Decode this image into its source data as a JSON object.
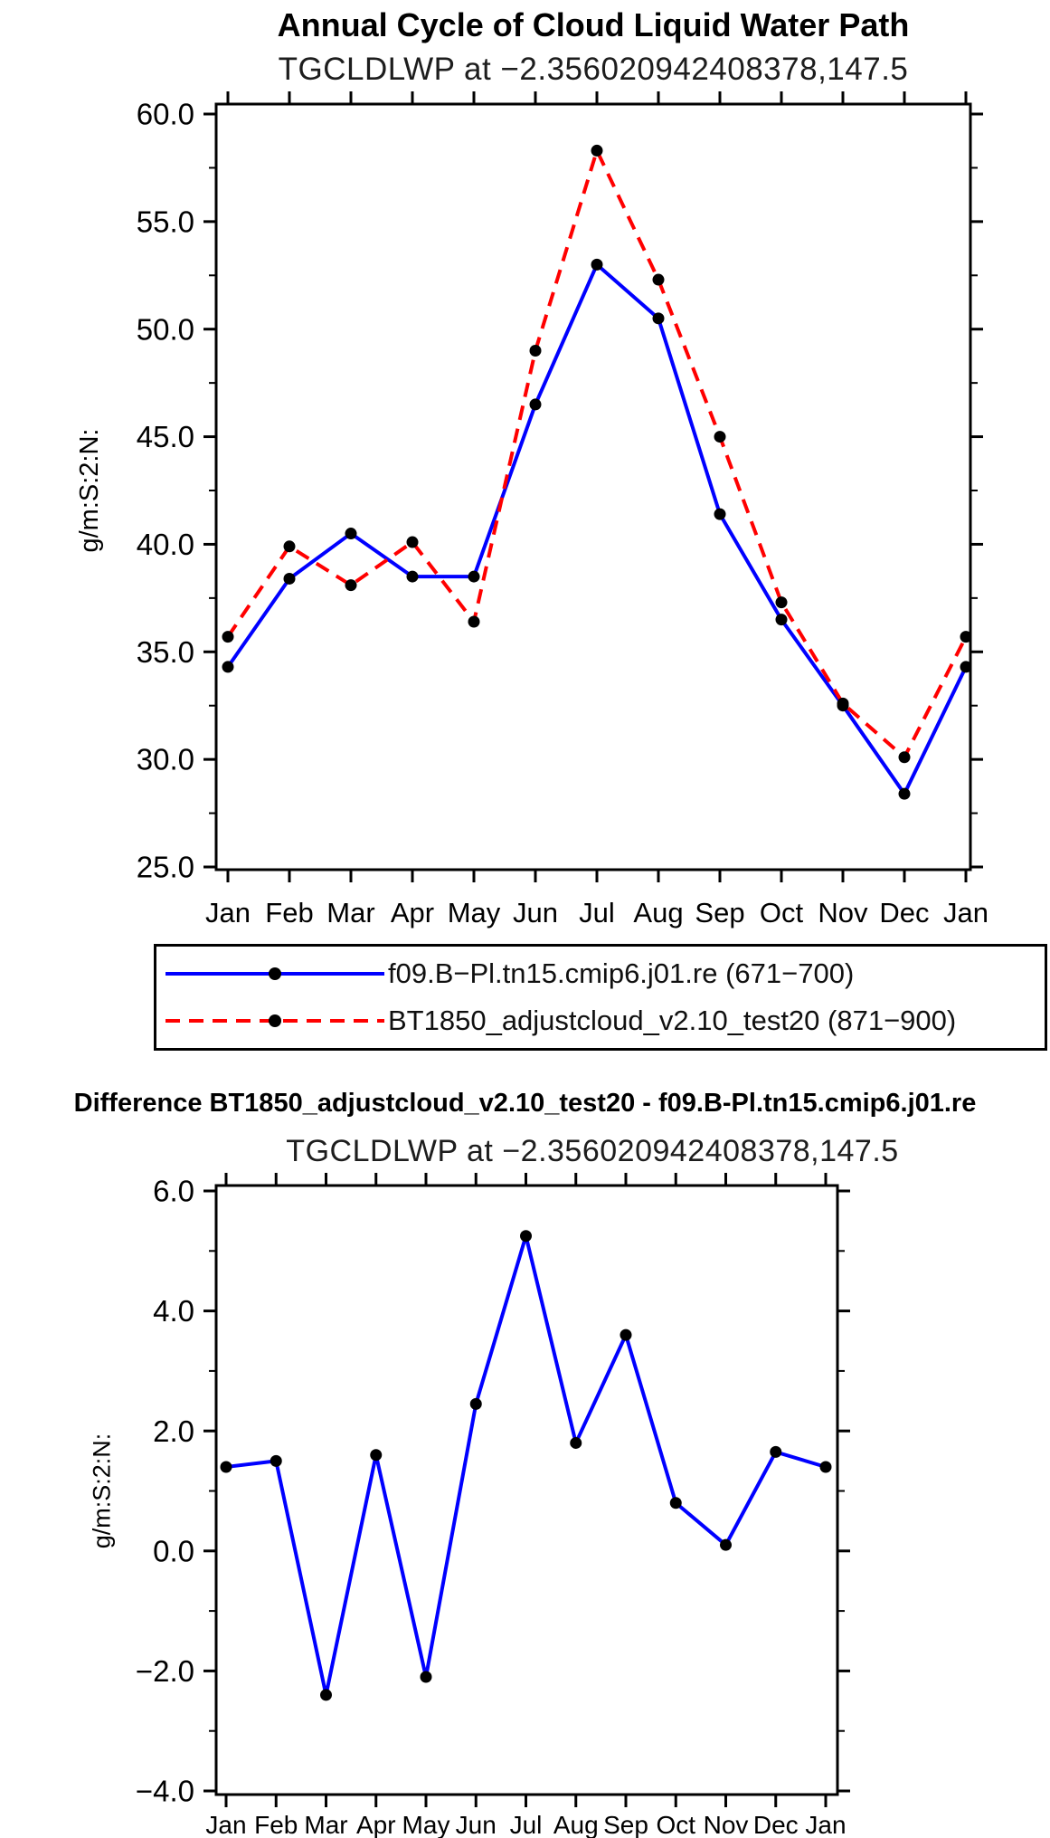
{
  "chart_data": [
    {
      "type": "line",
      "title": "Annual Cycle of Cloud Liquid Water Path",
      "subtitle": "TGCLDLWP at −2.356020942408378,147.5",
      "ylabel": "g/m:S:2:N:",
      "xlabel": "",
      "categories": [
        "Jan",
        "Feb",
        "Mar",
        "Apr",
        "May",
        "Jun",
        "Jul",
        "Aug",
        "Sep",
        "Oct",
        "Nov",
        "Dec",
        "Jan"
      ],
      "ylim": [
        25.0,
        60.0
      ],
      "ytick_values": [
        25,
        30,
        35,
        40,
        45,
        50,
        55,
        60
      ],
      "ytick_labels": [
        "25.0",
        "30.0",
        "35.0",
        "40.0",
        "45.0",
        "50.0",
        "55.0",
        "60.0"
      ],
      "yminor_step": 2.5,
      "grid": false,
      "legend_position": "below",
      "series": [
        {
          "name": "f09.B−Pl.tn15.cmip6.j01.re (671−700)",
          "color": "#0000ff",
          "line_style": "solid",
          "marker": "filled-circle",
          "marker_color": "#000000",
          "values": [
            34.3,
            38.4,
            40.5,
            38.5,
            38.5,
            46.5,
            53.0,
            50.5,
            41.4,
            36.5,
            32.5,
            28.4,
            34.3
          ]
        },
        {
          "name": "BT1850_adjustcloud_v2.10_test20 (871−900)",
          "color": "#ff0000",
          "line_style": "dashed",
          "marker": "filled-circle",
          "marker_color": "#000000",
          "values": [
            35.7,
            39.9,
            38.1,
            40.1,
            36.4,
            49.0,
            58.3,
            52.3,
            45.0,
            37.3,
            32.6,
            30.1,
            35.7
          ]
        }
      ]
    },
    {
      "type": "line",
      "title": "Difference BT1850_adjustcloud_v2.10_test20 - f09.B-Pl.tn15.cmip6.j01.re",
      "subtitle": "TGCLDLWP at −2.356020942408378,147.5",
      "ylabel": "g/m:S:2:N:",
      "xlabel": "",
      "categories": [
        "Jan",
        "Feb",
        "Mar",
        "Apr",
        "May",
        "Jun",
        "Jul",
        "Aug",
        "Sep",
        "Oct",
        "Nov",
        "Dec",
        "Jan"
      ],
      "ylim": [
        -4.0,
        6.0
      ],
      "ytick_values": [
        -4,
        -2,
        0,
        2,
        4,
        6
      ],
      "ytick_labels": [
        "−4.0",
        "−2.0",
        "0.0",
        "2.0",
        "4.0",
        "6.0"
      ],
      "yminor_step": 1.0,
      "grid": false,
      "series": [
        {
          "color": "#0000ff",
          "line_style": "solid",
          "marker": "filled-circle",
          "marker_color": "#000000",
          "values": [
            1.4,
            1.5,
            -2.4,
            1.6,
            -2.1,
            2.45,
            5.25,
            1.8,
            3.6,
            0.8,
            0.1,
            1.65,
            1.4
          ]
        }
      ]
    }
  ]
}
